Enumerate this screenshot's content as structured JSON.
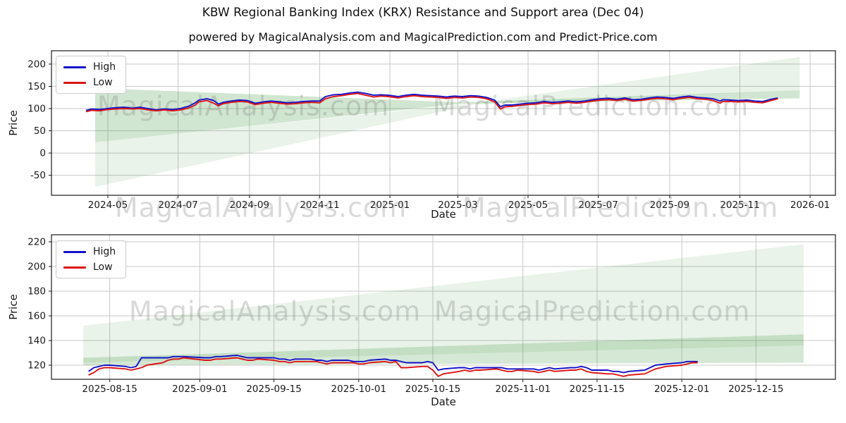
{
  "figure": {
    "title": "KBW Regional Banking Index (KRX) Resistance and Support area (Dec 04)",
    "subtitle": "powered by MagicalAnalysis.com and MagicalPrediction.com and Predict-Price.com"
  },
  "watermarks": {
    "analysis": "MagicalAnalysis.com",
    "prediction": "MagicalPrediction.com"
  },
  "legend": {
    "high": "High",
    "low": "Low"
  },
  "colors": {
    "high_line": "#1212c8",
    "low_line": "#dc1414",
    "area_green": "#2c8c2c",
    "grid": "#c8c8c8",
    "spine": "#1a1a1a",
    "tick_text": "#1a1a1a",
    "watermark": "#808080"
  },
  "chart_data": [
    {
      "type": "line",
      "name": "resistance-support-long-range",
      "xlabel": "Date",
      "ylabel": "Price",
      "xlim": [
        "2024-03-13",
        "2026-01-23"
      ],
      "ylim": [
        -95,
        230
      ],
      "yticks": [
        200,
        150,
        100,
        50,
        0,
        -50
      ],
      "xticks": [
        {
          "label": "2024-05",
          "date": "2024-05-01"
        },
        {
          "label": "2024-07",
          "date": "2024-07-01"
        },
        {
          "label": "2024-09",
          "date": "2024-09-01"
        },
        {
          "label": "2024-11",
          "date": "2024-11-01"
        },
        {
          "label": "2025-01",
          "date": "2025-01-01"
        },
        {
          "label": "2025-03",
          "date": "2025-03-01"
        },
        {
          "label": "2025-05",
          "date": "2025-05-01"
        },
        {
          "label": "2025-07",
          "date": "2025-07-01"
        },
        {
          "label": "2025-09",
          "date": "2025-09-01"
        },
        {
          "label": "2025-11",
          "date": "2025-11-01"
        },
        {
          "label": "2026-01",
          "date": "2026-01-01"
        }
      ],
      "legend_position": "upper-left",
      "grid": true,
      "areas": [
        {
          "name": "support-resistance-band",
          "opacity": 0.22,
          "points": [
            [
              "2024-04-20",
              146
            ],
            [
              "2025-03-04",
              114
            ],
            [
              "2025-12-23",
              141
            ],
            [
              "2025-12-23",
              123
            ],
            [
              "2025-03-04",
              111
            ],
            [
              "2024-04-20",
              24
            ]
          ]
        },
        {
          "name": "outer-projection-wedge",
          "opacity": 0.1,
          "points": [
            [
              "2024-04-20",
              24
            ],
            [
              "2025-03-15",
              112
            ],
            [
              "2025-12-23",
              216
            ],
            [
              "2025-12-23",
              141
            ],
            [
              "2025-03-15",
              109
            ],
            [
              "2024-04-20",
              -76
            ]
          ]
        }
      ],
      "series_names": [
        "High",
        "Low"
      ],
      "points": [
        [
          "2024-04-12",
          96,
          93
        ],
        [
          "2024-04-17",
          99,
          96
        ],
        [
          "2024-04-24",
          98,
          95
        ],
        [
          "2024-05-01",
          100,
          98
        ],
        [
          "2024-05-08",
          102,
          99
        ],
        [
          "2024-05-15",
          103,
          100
        ],
        [
          "2024-05-22",
          101,
          99
        ],
        [
          "2024-05-29",
          103,
          100
        ],
        [
          "2024-06-05",
          100,
          97
        ],
        [
          "2024-06-12",
          97,
          95
        ],
        [
          "2024-06-19",
          99,
          97
        ],
        [
          "2024-06-26",
          98,
          95
        ],
        [
          "2024-07-03",
          100,
          97
        ],
        [
          "2024-07-10",
          105,
          101
        ],
        [
          "2024-07-16",
          113,
          108
        ],
        [
          "2024-07-19",
          119,
          115
        ],
        [
          "2024-07-26",
          122,
          118
        ],
        [
          "2024-08-01",
          118,
          112
        ],
        [
          "2024-08-05",
          110,
          106
        ],
        [
          "2024-08-09",
          114,
          111
        ],
        [
          "2024-08-16",
          117,
          114
        ],
        [
          "2024-08-23",
          119,
          116
        ],
        [
          "2024-08-30",
          118,
          115
        ],
        [
          "2024-09-06",
          112,
          109
        ],
        [
          "2024-09-13",
          115,
          112
        ],
        [
          "2024-09-20",
          117,
          114
        ],
        [
          "2024-09-27",
          115,
          112
        ],
        [
          "2024-10-04",
          113,
          110
        ],
        [
          "2024-10-11",
          114,
          111
        ],
        [
          "2024-10-18",
          116,
          113
        ],
        [
          "2024-10-25",
          117,
          114
        ],
        [
          "2024-11-01",
          117,
          113
        ],
        [
          "2024-11-06",
          127,
          122
        ],
        [
          "2024-11-13",
          131,
          127
        ],
        [
          "2024-11-20",
          132,
          129
        ],
        [
          "2024-11-27",
          135,
          132
        ],
        [
          "2024-12-04",
          137,
          134
        ],
        [
          "2024-12-11",
          134,
          130
        ],
        [
          "2024-12-18",
          130,
          126
        ],
        [
          "2024-12-24",
          131,
          128
        ],
        [
          "2024-12-31",
          130,
          127
        ],
        [
          "2025-01-08",
          127,
          124
        ],
        [
          "2025-01-15",
          130,
          127
        ],
        [
          "2025-01-22",
          132,
          129
        ],
        [
          "2025-01-29",
          130,
          127
        ],
        [
          "2025-02-05",
          129,
          126
        ],
        [
          "2025-02-12",
          128,
          125
        ],
        [
          "2025-02-19",
          126,
          123
        ],
        [
          "2025-02-26",
          128,
          125
        ],
        [
          "2025-03-05",
          127,
          124
        ],
        [
          "2025-03-12",
          129,
          126
        ],
        [
          "2025-03-19",
          128,
          125
        ],
        [
          "2025-03-26",
          125,
          122
        ],
        [
          "2025-04-02",
          119,
          115
        ],
        [
          "2025-04-07",
          104,
          99
        ],
        [
          "2025-04-11",
          108,
          104
        ],
        [
          "2025-04-17",
          108,
          105
        ],
        [
          "2025-04-24",
          110,
          107
        ],
        [
          "2025-05-01",
          112,
          109
        ],
        [
          "2025-05-08",
          113,
          110
        ],
        [
          "2025-05-15",
          116,
          113
        ],
        [
          "2025-05-22",
          114,
          111
        ],
        [
          "2025-05-29",
          115,
          112
        ],
        [
          "2025-06-05",
          117,
          114
        ],
        [
          "2025-06-12",
          115,
          112
        ],
        [
          "2025-06-19",
          117,
          114
        ],
        [
          "2025-06-26",
          120,
          117
        ],
        [
          "2025-07-03",
          122,
          119
        ],
        [
          "2025-07-10",
          123,
          120
        ],
        [
          "2025-07-17",
          121,
          118
        ],
        [
          "2025-07-24",
          124,
          121
        ],
        [
          "2025-07-31",
          120,
          117
        ],
        [
          "2025-08-07",
          121,
          118
        ],
        [
          "2025-08-14",
          124,
          121
        ],
        [
          "2025-08-21",
          126,
          123
        ],
        [
          "2025-08-28",
          125,
          122
        ],
        [
          "2025-09-04",
          123,
          120
        ],
        [
          "2025-09-11",
          126,
          123
        ],
        [
          "2025-09-18",
          128,
          125
        ],
        [
          "2025-09-25",
          125,
          122
        ],
        [
          "2025-10-02",
          124,
          121
        ],
        [
          "2025-10-09",
          122,
          118
        ],
        [
          "2025-10-15",
          117,
          112
        ],
        [
          "2025-10-17",
          120,
          116
        ],
        [
          "2025-10-24",
          119,
          116
        ],
        [
          "2025-10-31",
          118,
          115
        ],
        [
          "2025-11-07",
          119,
          116
        ],
        [
          "2025-11-14",
          117,
          114
        ],
        [
          "2025-11-21",
          116,
          113
        ],
        [
          "2025-11-28",
          121,
          118
        ],
        [
          "2025-12-04",
          124,
          122
        ]
      ]
    },
    {
      "type": "line",
      "name": "resistance-support-recent",
      "xlabel": "Date",
      "ylabel": "Price",
      "xlim": [
        "2025-08-04",
        "2025-12-30"
      ],
      "ylim": [
        108.6,
        225.7
      ],
      "yticks": [
        220,
        200,
        180,
        160,
        140,
        120
      ],
      "xticks": [
        {
          "label": "2025-08-15",
          "date": "2025-08-15"
        },
        {
          "label": "2025-09-01",
          "date": "2025-09-01"
        },
        {
          "label": "2025-09-15",
          "date": "2025-09-15"
        },
        {
          "label": "2025-10-01",
          "date": "2025-10-01"
        },
        {
          "label": "2025-10-15",
          "date": "2025-10-15"
        },
        {
          "label": "2025-11-01",
          "date": "2025-11-01"
        },
        {
          "label": "2025-11-15",
          "date": "2025-11-15"
        },
        {
          "label": "2025-12-01",
          "date": "2025-12-01"
        },
        {
          "label": "2025-12-15",
          "date": "2025-12-15"
        }
      ],
      "legend_position": "upper-left",
      "grid": true,
      "areas": [
        {
          "name": "support-resistance-band",
          "opacity": 0.2,
          "points": [
            [
              "2025-08-10",
              126
            ],
            [
              "2025-12-24",
              145
            ],
            [
              "2025-12-24",
              122
            ],
            [
              "2025-08-10",
              120
            ]
          ]
        },
        {
          "name": "outer-projection-wedge",
          "opacity": 0.1,
          "points": [
            [
              "2025-08-10",
              152
            ],
            [
              "2025-12-24",
              218
            ],
            [
              "2025-12-24",
              136
            ],
            [
              "2025-08-10",
              122
            ]
          ]
        }
      ],
      "series_names": [
        "High",
        "Low"
      ],
      "points": [
        [
          "2025-08-11",
          115,
          112
        ],
        [
          "2025-08-12",
          118,
          114
        ],
        [
          "2025-08-13",
          119,
          117
        ],
        [
          "2025-08-14",
          120,
          118
        ],
        [
          "2025-08-15",
          120,
          118
        ],
        [
          "2025-08-18",
          119,
          117
        ],
        [
          "2025-08-19",
          118,
          116
        ],
        [
          "2025-08-20",
          119,
          117
        ],
        [
          "2025-08-21",
          126,
          118
        ],
        [
          "2025-08-22",
          126,
          120
        ],
        [
          "2025-08-25",
          126,
          122
        ],
        [
          "2025-08-26",
          126,
          124
        ],
        [
          "2025-08-27",
          127,
          125
        ],
        [
          "2025-08-28",
          127,
          125
        ],
        [
          "2025-08-29",
          127,
          126
        ],
        [
          "2025-09-02",
          126,
          124
        ],
        [
          "2025-09-03",
          126,
          124
        ],
        [
          "2025-09-04",
          127,
          125
        ],
        [
          "2025-09-05",
          127,
          125
        ],
        [
          "2025-09-08",
          128,
          126
        ],
        [
          "2025-09-09",
          127,
          125
        ],
        [
          "2025-09-10",
          126,
          124
        ],
        [
          "2025-09-11",
          126,
          124
        ],
        [
          "2025-09-12",
          126,
          125
        ],
        [
          "2025-09-15",
          126,
          124
        ],
        [
          "2025-09-16",
          125,
          123
        ],
        [
          "2025-09-17",
          125,
          123
        ],
        [
          "2025-09-18",
          124,
          122
        ],
        [
          "2025-09-19",
          125,
          123
        ],
        [
          "2025-09-22",
          125,
          123
        ],
        [
          "2025-09-23",
          124,
          123
        ],
        [
          "2025-09-24",
          124,
          122
        ],
        [
          "2025-09-25",
          123,
          121
        ],
        [
          "2025-09-26",
          124,
          122
        ],
        [
          "2025-09-29",
          124,
          122
        ],
        [
          "2025-09-30",
          123,
          122
        ],
        [
          "2025-10-01",
          123,
          121
        ],
        [
          "2025-10-02",
          123,
          121
        ],
        [
          "2025-10-03",
          124,
          122
        ],
        [
          "2025-10-06",
          125,
          123
        ],
        [
          "2025-10-07",
          124,
          122
        ],
        [
          "2025-10-08",
          124,
          123
        ],
        [
          "2025-10-09",
          123,
          118
        ],
        [
          "2025-10-10",
          122,
          118
        ],
        [
          "2025-10-13",
          122,
          119
        ],
        [
          "2025-10-14",
          123,
          119
        ],
        [
          "2025-10-15",
          122,
          116
        ],
        [
          "2025-10-16",
          116,
          111
        ],
        [
          "2025-10-17",
          117,
          113
        ],
        [
          "2025-10-20",
          118,
          115
        ],
        [
          "2025-10-21",
          118,
          116
        ],
        [
          "2025-10-22",
          117,
          115
        ],
        [
          "2025-10-23",
          118,
          116
        ],
        [
          "2025-10-24",
          118,
          116
        ],
        [
          "2025-10-27",
          118,
          117
        ],
        [
          "2025-10-28",
          118,
          116
        ],
        [
          "2025-10-29",
          117,
          115
        ],
        [
          "2025-10-30",
          117,
          115
        ],
        [
          "2025-10-31",
          117,
          116
        ],
        [
          "2025-11-03",
          117,
          115
        ],
        [
          "2025-11-04",
          116,
          114
        ],
        [
          "2025-11-05",
          117,
          115
        ],
        [
          "2025-11-06",
          118,
          116
        ],
        [
          "2025-11-07",
          117,
          115
        ],
        [
          "2025-11-10",
          118,
          116
        ],
        [
          "2025-11-11",
          118,
          116
        ],
        [
          "2025-11-12",
          119,
          117
        ],
        [
          "2025-11-13",
          118,
          115
        ],
        [
          "2025-11-14",
          116,
          114
        ],
        [
          "2025-11-17",
          116,
          113
        ],
        [
          "2025-11-18",
          115,
          113
        ],
        [
          "2025-11-19",
          115,
          112
        ],
        [
          "2025-11-20",
          114,
          111
        ],
        [
          "2025-11-21",
          115,
          112
        ],
        [
          "2025-11-24",
          116,
          113
        ],
        [
          "2025-11-25",
          118,
          115
        ],
        [
          "2025-11-26",
          120,
          117
        ],
        [
          "2025-11-28",
          121,
          119
        ],
        [
          "2025-12-01",
          122,
          120
        ],
        [
          "2025-12-02",
          123,
          121
        ],
        [
          "2025-12-03",
          123,
          122
        ],
        [
          "2025-12-04",
          123,
          122
        ]
      ]
    }
  ]
}
